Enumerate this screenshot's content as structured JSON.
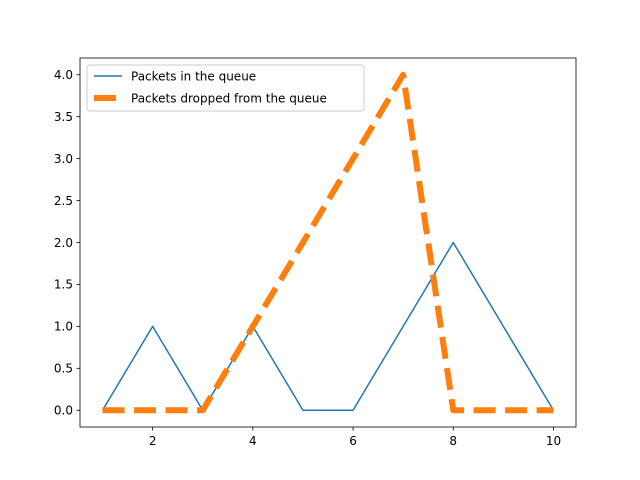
{
  "chart_data": {
    "type": "line",
    "title": "",
    "xlabel": "",
    "ylabel": "",
    "x": [
      1,
      2,
      3,
      4,
      5,
      6,
      7,
      8,
      9,
      10
    ],
    "series": [
      {
        "name": "Packets in the queue",
        "values": [
          0,
          1,
          0,
          1,
          0,
          0,
          1,
          2,
          1,
          0
        ],
        "color": "#1f77b4",
        "style": "solid"
      },
      {
        "name": "Packets dropped from the queue",
        "values": [
          0,
          0,
          0,
          1,
          2,
          3,
          4,
          0,
          0,
          0
        ],
        "color": "#ff7f0e",
        "style": "dashed"
      }
    ],
    "xlim": [
      0.55,
      10.45
    ],
    "ylim": [
      -0.2,
      4.2
    ],
    "xticks": [
      2,
      4,
      6,
      8,
      10
    ],
    "xtick_labels": [
      "2",
      "4",
      "6",
      "8",
      "10"
    ],
    "yticks": [
      0.0,
      0.5,
      1.0,
      1.5,
      2.0,
      2.5,
      3.0,
      3.5,
      4.0
    ],
    "ytick_labels": [
      "0.0",
      "0.5",
      "1.0",
      "1.5",
      "2.0",
      "2.5",
      "3.0",
      "3.5",
      "4.0"
    ],
    "grid": false,
    "legend_position": "upper-left"
  }
}
